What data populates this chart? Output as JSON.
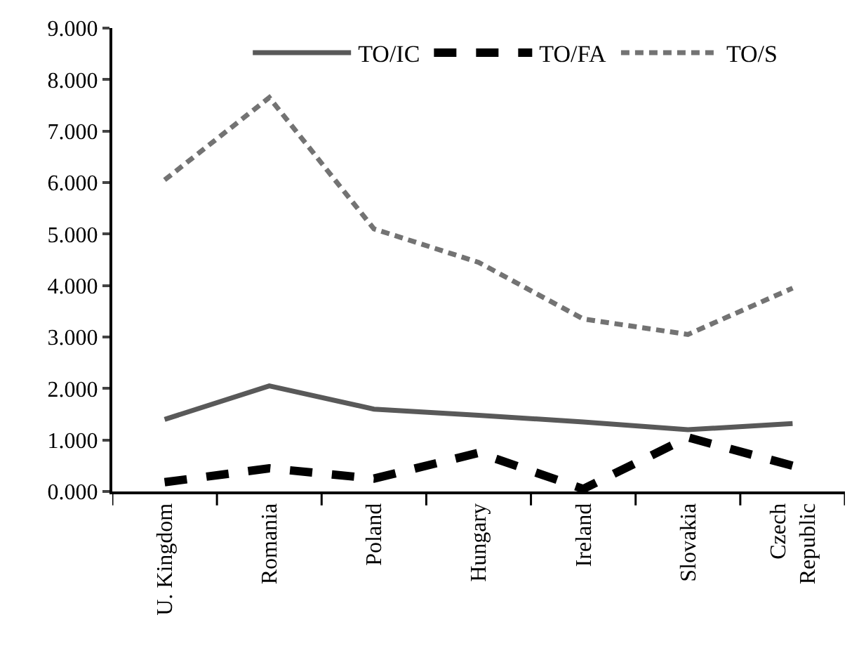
{
  "chart_data": {
    "type": "line",
    "categories": [
      "U. Kingdom",
      "Romania",
      "Poland",
      "Hungary",
      "Ireland",
      "Slovakia",
      "Czech\nRepublic"
    ],
    "series": [
      {
        "name": "TO/IC",
        "color": "#595959",
        "line_style": "solid",
        "values": [
          1.4,
          2.05,
          1.6,
          1.48,
          1.35,
          1.2,
          1.32
        ]
      },
      {
        "name": "TO/FA",
        "color": "#000000",
        "line_style": "dashed",
        "values": [
          0.18,
          0.45,
          0.25,
          0.75,
          0.05,
          1.05,
          0.5
        ]
      },
      {
        "name": "TO/S",
        "color": "#737373",
        "line_style": "dotted",
        "values": [
          6.05,
          7.65,
          5.1,
          4.45,
          3.35,
          3.05,
          3.95
        ]
      }
    ],
    "ylim": [
      0,
      9
    ],
    "yticks": [
      {
        "value": 0,
        "label": "0.000"
      },
      {
        "value": 1,
        "label": "1.000"
      },
      {
        "value": 2,
        "label": "2.000"
      },
      {
        "value": 3,
        "label": "3.000"
      },
      {
        "value": 4,
        "label": "4.000"
      },
      {
        "value": 5,
        "label": "5.000"
      },
      {
        "value": 6,
        "label": "6.000"
      },
      {
        "value": 7,
        "label": "7.000"
      },
      {
        "value": 8,
        "label": "8.000"
      },
      {
        "value": 9,
        "label": "9.000"
      }
    ],
    "legend": "top",
    "marker": "none"
  }
}
